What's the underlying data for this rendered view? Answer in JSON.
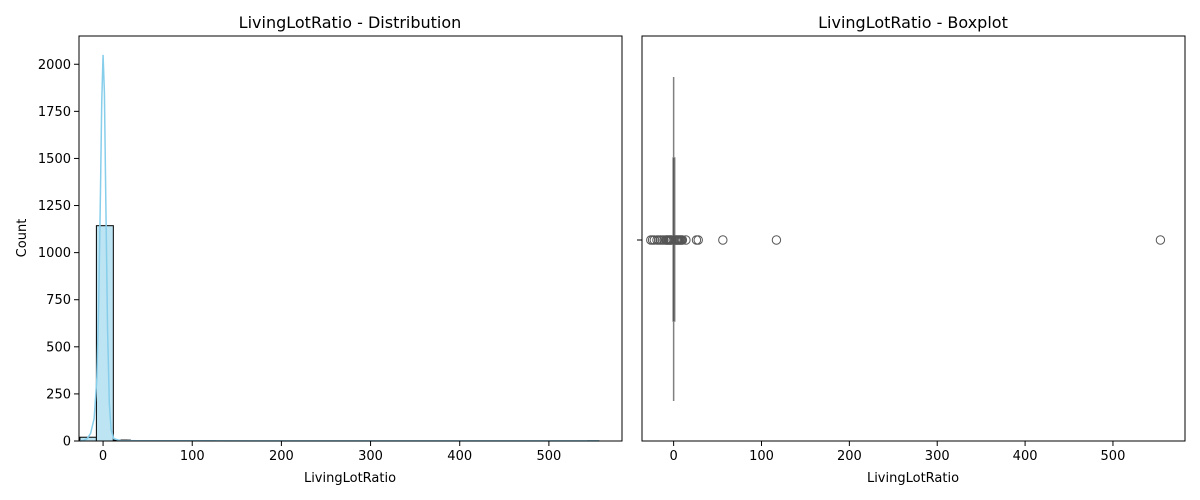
{
  "chart_data": [
    {
      "type": "histogram",
      "title": "LivingLotRatio - Distribution",
      "xlabel": "LivingLotRatio",
      "ylabel": "Count",
      "xlim": [
        -27,
        582
      ],
      "ylim": [
        0,
        2150
      ],
      "xticks": [
        0,
        100,
        200,
        300,
        400,
        500
      ],
      "yticks": [
        0,
        250,
        500,
        750,
        1000,
        1250,
        1500,
        1750,
        2000
      ],
      "bins": [
        {
          "x0": -26.0,
          "x1": -7.5,
          "count": 20
        },
        {
          "x0": -7.5,
          "x1": 11.5,
          "count": 1143
        },
        {
          "x0": 11.5,
          "x1": 30.5,
          "count": 5
        },
        {
          "x0": 30.5,
          "x1": 49.5,
          "count": 0
        },
        {
          "x0": 49.5,
          "x1": 68.5,
          "count": 1
        },
        {
          "x0": 106.5,
          "x1": 125.5,
          "count": 1
        },
        {
          "x0": 543.5,
          "x1": 556.0,
          "count": 1
        }
      ],
      "kde": [
        [
          -26,
          0
        ],
        [
          -22,
          3
        ],
        [
          -18,
          12
        ],
        [
          -14,
          40
        ],
        [
          -10,
          120
        ],
        [
          -7,
          330
        ],
        [
          -5,
          700
        ],
        [
          -3,
          1300
        ],
        [
          -1.5,
          1800
        ],
        [
          0,
          2050
        ],
        [
          1.5,
          1850
        ],
        [
          3,
          1300
        ],
        [
          5,
          600
        ],
        [
          7,
          200
        ],
        [
          9,
          60
        ],
        [
          12,
          12
        ],
        [
          20,
          2
        ],
        [
          40,
          1
        ],
        [
          100,
          1
        ],
        [
          200,
          0.5
        ],
        [
          300,
          0.5
        ],
        [
          400,
          0.5
        ],
        [
          500,
          0.5
        ],
        [
          556,
          0.5
        ]
      ],
      "colors": {
        "bar_fill": "#bde4f2",
        "bar_edge": "#000000",
        "kde": "#87ceeb"
      }
    },
    {
      "type": "boxplot",
      "title": "LivingLotRatio - Boxplot",
      "xlabel": "LivingLotRatio",
      "xlim": [
        -36,
        582
      ],
      "xticks": [
        0,
        100,
        200,
        300,
        400,
        500
      ],
      "box": {
        "q1": -0.5,
        "median": 0.0,
        "q3": 0.5,
        "whisker_low": -2.0,
        "whisker_high": 2.0
      },
      "outliers": [
        -26,
        -24,
        -22,
        -19,
        -17,
        -15,
        -13,
        -11,
        -9,
        -8,
        -7,
        -6,
        -5,
        -4,
        -3,
        -2.5,
        2.5,
        3,
        4,
        5,
        6,
        7,
        8,
        9,
        10,
        14,
        26,
        28,
        56,
        117,
        554
      ],
      "colors": {
        "box": "#808080",
        "outlier_edge": "#555555"
      }
    }
  ]
}
